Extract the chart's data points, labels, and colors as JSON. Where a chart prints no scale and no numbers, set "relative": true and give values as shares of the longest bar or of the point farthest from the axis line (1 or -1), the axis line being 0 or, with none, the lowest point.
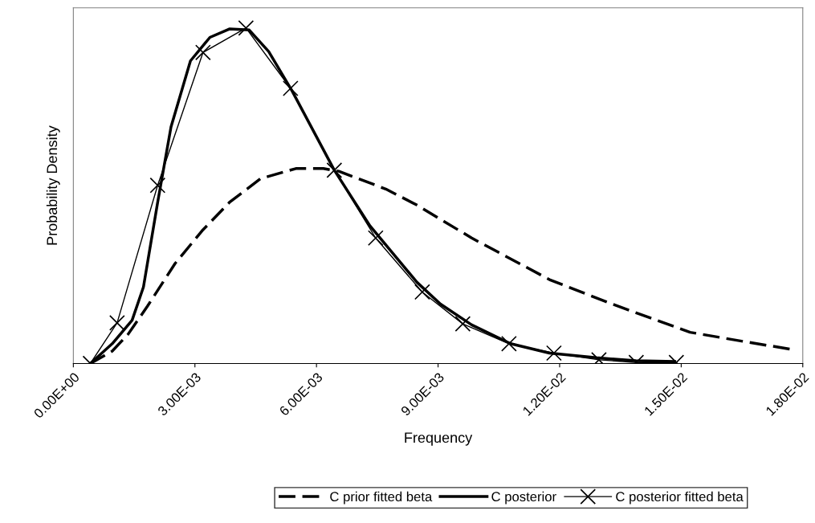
{
  "chart_data": {
    "type": "line",
    "relative": true,
    "xlabel": "Frequency",
    "ylabel": "Probability Density",
    "xlim": [
      0,
      0.018
    ],
    "xticks": [
      {
        "value": 0,
        "label": "0.00E+00"
      },
      {
        "value": 0.003,
        "label": "3.00E-03"
      },
      {
        "value": 0.006,
        "label": "6.00E-03"
      },
      {
        "value": 0.009,
        "label": "9.00E-03"
      },
      {
        "value": 0.012,
        "label": "1.20E-02"
      },
      {
        "value": 0.015,
        "label": "1.50E-02"
      },
      {
        "value": 0.018,
        "label": "1.80E-02"
      }
    ],
    "tick_labels": "x",
    "grid": false,
    "legend": "bottom",
    "series": [
      {
        "name": "C prior fitted beta",
        "color": "#000000",
        "line_style": "dashed",
        "marker": "none",
        "x": [
          0.00042,
          0.00096,
          0.00135,
          0.00183,
          0.00251,
          0.00318,
          0.00385,
          0.00462,
          0.00549,
          0.00617,
          0.00655,
          0.00771,
          0.00848,
          0.00983,
          0.01175,
          0.0133,
          0.01522,
          0.01657,
          0.01773
        ],
        "values": [
          0,
          0.037,
          0.087,
          0.171,
          0.298,
          0.396,
          0.48,
          0.551,
          0.581,
          0.581,
          0.573,
          0.52,
          0.472,
          0.374,
          0.25,
          0.177,
          0.093,
          0.065,
          0.042
        ]
      },
      {
        "name": "C posterior",
        "color": "#000000",
        "line_style": "solid",
        "marker": "none",
        "x": [
          0.00042,
          0.00096,
          0.00145,
          0.00173,
          0.00208,
          0.00241,
          0.00289,
          0.00337,
          0.00385,
          0.00434,
          0.00482,
          0.0054,
          0.00644,
          0.00732,
          0.00848,
          0.00906,
          0.00983,
          0.01079,
          0.01175,
          0.01291,
          0.01388,
          0.01484
        ],
        "values": [
          0,
          0.059,
          0.129,
          0.228,
          0.48,
          0.705,
          0.902,
          0.972,
          0.997,
          0.994,
          0.93,
          0.812,
          0.576,
          0.41,
          0.242,
          0.177,
          0.115,
          0.059,
          0.031,
          0.017,
          0.008,
          0.006
        ]
      },
      {
        "name": "C posterior fitted beta",
        "color": "#000000",
        "line_style": "solid",
        "marker": "cross",
        "x": [
          0.00042,
          0.00108,
          0.00208,
          0.0032,
          0.00426,
          0.00536,
          0.00644,
          0.00746,
          0.00861,
          0.00961,
          0.01075,
          0.01186,
          0.01297,
          0.01389,
          0.01488
        ],
        "values": [
          0,
          0.121,
          0.531,
          0.927,
          1.0,
          0.82,
          0.576,
          0.374,
          0.213,
          0.118,
          0.059,
          0.031,
          0.011,
          0.003,
          0.003
        ]
      }
    ]
  }
}
